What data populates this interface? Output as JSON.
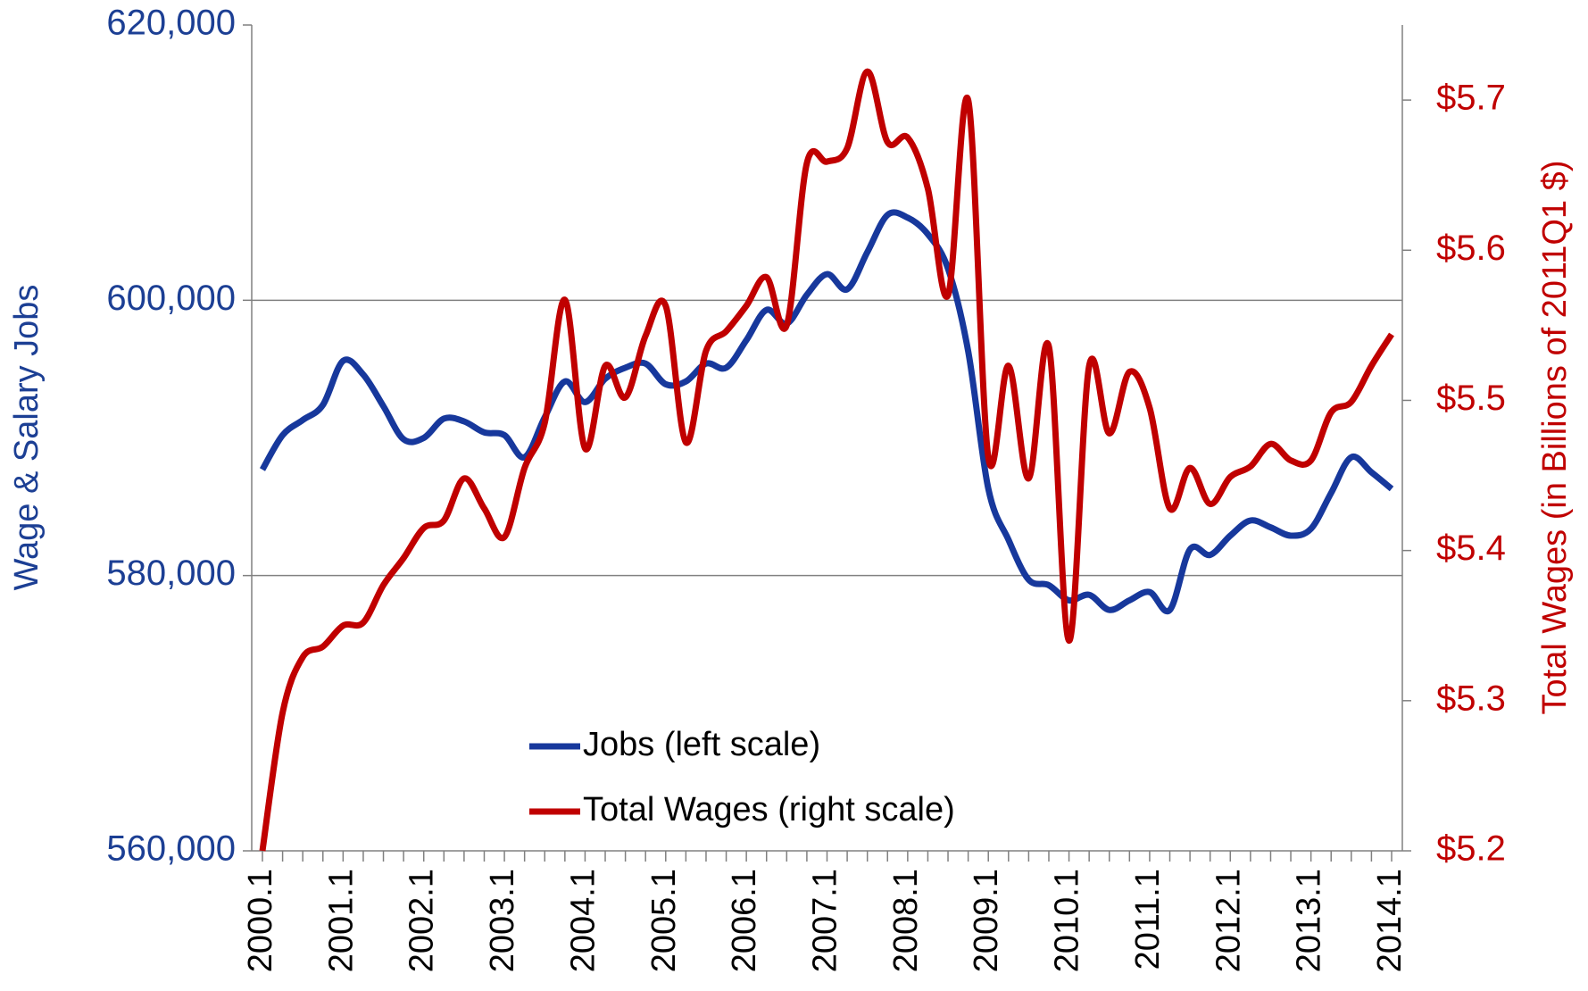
{
  "chart_data": {
    "type": "line",
    "y_label": "Wage & Salary Jobs",
    "y2_label": "Total Wages (in Billions of 2011Q1 $)",
    "categories": [
      "2000.1",
      null,
      null,
      null,
      "2001.1",
      null,
      null,
      null,
      "2002.1",
      null,
      null,
      null,
      "2003.1",
      null,
      null,
      null,
      "2004.1",
      null,
      null,
      null,
      "2005.1",
      null,
      null,
      null,
      "2006.1",
      null,
      null,
      null,
      "2007.1",
      null,
      null,
      null,
      "2008.1",
      null,
      null,
      null,
      "2009.1",
      null,
      null,
      null,
      "2010.1",
      null,
      null,
      null,
      "2011.1",
      null,
      null,
      null,
      "2012.1",
      null,
      null,
      null,
      "2013.1",
      null,
      null,
      null,
      "2014.1"
    ],
    "ylim": [
      560000,
      620000
    ],
    "yticks": [
      {
        "value": 560000,
        "label": "560,000"
      },
      {
        "value": 580000,
        "label": "580,000"
      },
      {
        "value": 600000,
        "label": "600,000"
      },
      {
        "value": 620000,
        "label": "620,000"
      }
    ],
    "y2lim": [
      5.2,
      5.75
    ],
    "y2ticks": [
      {
        "value": 5.2,
        "label": "$5.2"
      },
      {
        "value": 5.3,
        "label": "$5.3"
      },
      {
        "value": 5.4,
        "label": "$5.4"
      },
      {
        "value": 5.5,
        "label": "$5.5"
      },
      {
        "value": 5.6,
        "label": "$5.6"
      },
      {
        "value": 5.7,
        "label": "$5.7"
      }
    ],
    "grid": true,
    "legend": "bottom-center",
    "y_color": "#1c3f94",
    "y2_color": "#c00000",
    "series": [
      {
        "name": "Jobs (left scale)",
        "color": "#17389c",
        "axis": "y",
        "values": [
          587700,
          590200,
          591300,
          592400,
          595600,
          594600,
          592300,
          589900,
          590000,
          591400,
          591200,
          590400,
          590200,
          588600,
          591500,
          594100,
          592600,
          594300,
          595100,
          595400,
          593900,
          594100,
          595400,
          595100,
          597100,
          599300,
          598300,
          600400,
          601900,
          600800,
          603500,
          606200,
          606000,
          604800,
          602300,
          596300,
          586300,
          582600,
          579700,
          579300,
          578200,
          578600,
          577500,
          578200,
          578800,
          577500,
          581900,
          581500,
          582900,
          584000,
          583500,
          582900,
          583400,
          586000,
          588600,
          587500,
          586300
        ]
      },
      {
        "name": "Total Wages (right scale)",
        "color": "#c00000",
        "axis": "y2",
        "values": [
          5.2,
          5.292,
          5.329,
          5.336,
          5.35,
          5.352,
          5.377,
          5.395,
          5.415,
          5.42,
          5.448,
          5.428,
          5.409,
          5.455,
          5.485,
          5.567,
          5.468,
          5.523,
          5.502,
          5.543,
          5.563,
          5.472,
          5.533,
          5.546,
          5.563,
          5.582,
          5.55,
          5.658,
          5.659,
          5.668,
          5.719,
          5.672,
          5.675,
          5.641,
          5.57,
          5.7,
          5.462,
          5.523,
          5.448,
          5.536,
          5.34,
          5.523,
          5.478,
          5.519,
          5.495,
          5.428,
          5.455,
          5.431,
          5.449,
          5.456,
          5.471,
          5.46,
          5.46,
          5.492,
          5.499,
          5.523,
          5.544
        ]
      }
    ]
  }
}
